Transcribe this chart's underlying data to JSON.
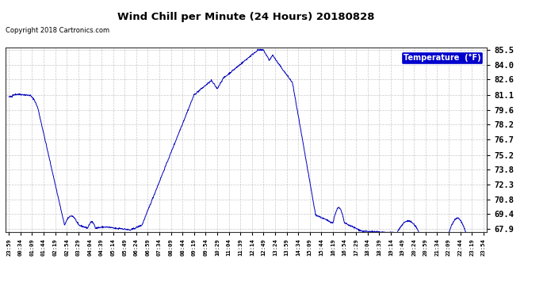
{
  "title": "Wind Chill per Minute (24 Hours) 20180828",
  "copyright": "Copyright 2018 Cartronics.com",
  "legend_label": "Temperature  (°F)",
  "line_color": "#0000bb",
  "background_color": "#ffffff",
  "plot_bg_color": "#ffffff",
  "ylim": [
    67.65,
    85.75
  ],
  "yticks": [
    67.9,
    69.4,
    70.8,
    72.3,
    73.8,
    75.2,
    76.7,
    78.2,
    79.6,
    81.1,
    82.6,
    84.0,
    85.5
  ],
  "x_labels": [
    "23:59",
    "00:34",
    "01:09",
    "01:44",
    "02:19",
    "02:54",
    "03:29",
    "04:04",
    "04:39",
    "05:14",
    "05:49",
    "06:24",
    "06:59",
    "07:34",
    "08:09",
    "08:44",
    "09:19",
    "09:54",
    "10:29",
    "11:04",
    "11:39",
    "12:14",
    "12:49",
    "13:24",
    "13:59",
    "14:34",
    "15:09",
    "15:44",
    "16:19",
    "16:54",
    "17:29",
    "18:04",
    "18:39",
    "19:14",
    "19:49",
    "20:24",
    "20:59",
    "21:34",
    "22:09",
    "22:44",
    "23:19",
    "23:54"
  ]
}
